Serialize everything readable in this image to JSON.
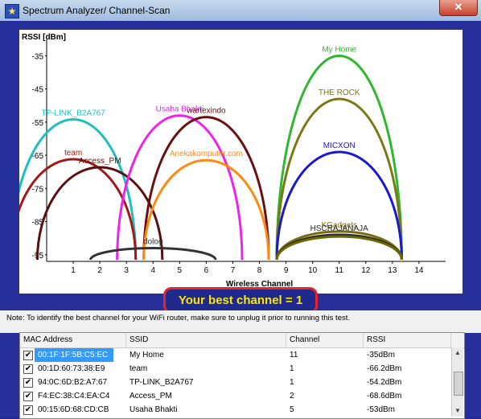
{
  "window": {
    "title": "Spectrum Analyzer/ Channel-Scan",
    "close_glyph": "✕",
    "icon": "star-icon"
  },
  "best_channel_label": "Your best channel = 1",
  "note": "Note:  To identify the best channel for your WiFi router, make sure to unplug it prior to running this test.",
  "table": {
    "headers": [
      "MAC Address",
      "SSID",
      "Channel",
      "RSSI"
    ],
    "rows": [
      {
        "mac": "00:1F:1F:5B:C5:EC",
        "ssid": "My Home",
        "channel": "11",
        "rssi": "-35dBm",
        "checked": true,
        "selected": true
      },
      {
        "mac": "00:1D:60:73:38:E9",
        "ssid": "team",
        "channel": "1",
        "rssi": "-66.2dBm",
        "checked": true
      },
      {
        "mac": "94:0C:6D:B2:A7:67",
        "ssid": "TP-LINK_B2A767",
        "channel": "1",
        "rssi": "-54.2dBm",
        "checked": true
      },
      {
        "mac": "F4:EC:38:C4:EA:C4",
        "ssid": "Access_PM",
        "channel": "2",
        "rssi": "-68.6dBm",
        "checked": true
      },
      {
        "mac": "00:15:6D:68:CD:CB",
        "ssid": "Usaha Bhakti",
        "channel": "5",
        "rssi": "-53dBm",
        "checked": true
      }
    ]
  },
  "chart_data": {
    "type": "area",
    "ylabel": "RSSI [dBm]",
    "xlabel": "Wireless Channel",
    "y_ticks": [
      "-35",
      "-45",
      "-55",
      "-65",
      "-75",
      "-85",
      "-95"
    ],
    "x_ticks": [
      "1",
      "2",
      "3",
      "4",
      "5",
      "6",
      "7",
      "8",
      "9",
      "10",
      "11",
      "12",
      "13",
      "14"
    ],
    "ylim": [
      -97,
      -32
    ],
    "xlim": [
      0,
      15
    ],
    "series": [
      {
        "name": "My Home",
        "channel": 11,
        "rssi": -35,
        "color": "#2fb82f"
      },
      {
        "name": "THE ROCK",
        "channel": 11,
        "rssi": -48,
        "color": "#7a7a14"
      },
      {
        "name": "MICXON",
        "channel": 11,
        "rssi": -64,
        "color": "#1a1acc"
      },
      {
        "name": "TP-LINK_B2A767",
        "channel": 1,
        "rssi": -54.2,
        "color": "#1fbfbf"
      },
      {
        "name": "team",
        "channel": 1,
        "rssi": -66.2,
        "color": "#a01818"
      },
      {
        "name": "Access_PM",
        "channel": 2,
        "rssi": -68.6,
        "color": "#5a1010"
      },
      {
        "name": "Usaha Bhakti",
        "channel": 5,
        "rssi": -53,
        "color": "#ee22ee"
      },
      {
        "name": "wartexindo",
        "channel": 6,
        "rssi": -53.5,
        "color": "#6b1010"
      },
      {
        "name": "Anekakomputer.com",
        "channel": 6,
        "rssi": -66.5,
        "color": "#ff8a12"
      },
      {
        "name": "dolog",
        "channel": 4,
        "rssi": -93,
        "color": "#333333"
      },
      {
        "name": "KGadgets",
        "channel": 11,
        "rssi": -88,
        "color": "#7a6b10"
      },
      {
        "name": "HSC",
        "channel": 11,
        "rssi": -89,
        "color": "#2a2a2a"
      },
      {
        "name": "HSC RAJA",
        "channel": 11,
        "rssi": -89.5,
        "color": "#6a6a00"
      }
    ],
    "labels": [
      {
        "text": "My Home",
        "series": 0
      },
      {
        "text": "THE ROCK",
        "series": 1
      },
      {
        "text": "MICXON",
        "series": 2
      },
      {
        "text": "TP-LINK_B2A767",
        "series": 3
      },
      {
        "text": "team",
        "series": 4
      },
      {
        "text": "Access_PM",
        "series": 5
      },
      {
        "text": "Usaha Bhakti",
        "series": 6
      },
      {
        "text": "wartexindo",
        "series": 7
      },
      {
        "text": "Anekakomputer.com",
        "series": 8
      },
      {
        "text": "dolog",
        "series": 9
      },
      {
        "text": "KGadgets",
        "series": 10
      },
      {
        "text": "HSCRAJANAJA",
        "series": 11
      }
    ]
  }
}
